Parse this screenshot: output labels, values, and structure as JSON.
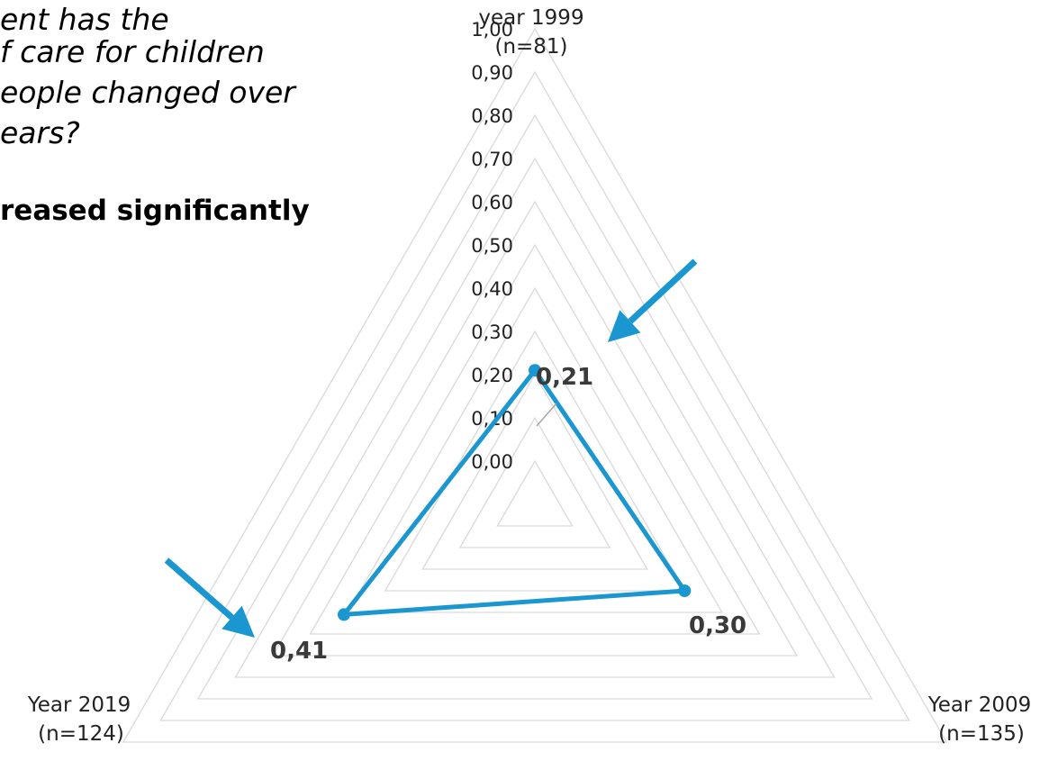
{
  "text": {
    "question_lines": [
      "ent has the",
      "f care for children",
      "eople changed over",
      "ears?"
    ],
    "answer": "reased significantly"
  },
  "chart_data": {
    "type": "radar",
    "axes": [
      {
        "label": "year 1999",
        "n": "(n=81)"
      },
      {
        "label": "Year 2009",
        "n": "(n=135)"
      },
      {
        "label": "Year 2019",
        "n": "(n=124)"
      }
    ],
    "values": [
      0.21,
      0.3,
      0.41
    ],
    "data_labels": [
      "0,21",
      "0,30",
      "0,41"
    ],
    "ticks": [
      "0,00",
      "0,10",
      "0,20",
      "0,30",
      "0,40",
      "0,50",
      "0,60",
      "0,70",
      "0,80",
      "0,90",
      "1,00"
    ],
    "range": [
      -0.1,
      1.0
    ],
    "grid": true,
    "series_color": "#1a96d0",
    "grid_color": "#d9d9d9",
    "arrow_color": "#1a96d0",
    "annotations": [
      "arrow pointing to year 1999 value",
      "arrow pointing to year 2019 value"
    ]
  }
}
